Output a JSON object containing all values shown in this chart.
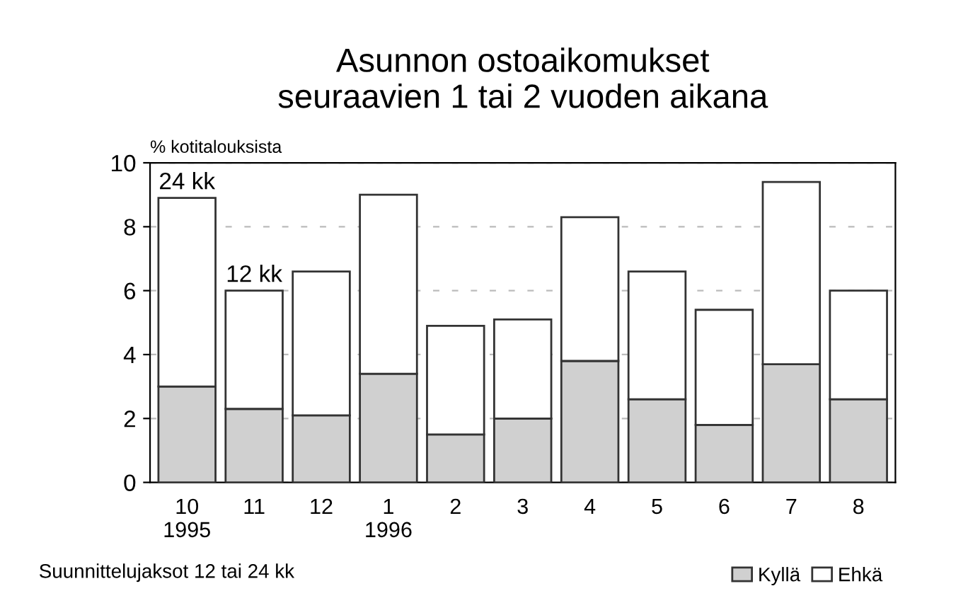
{
  "chart_data": {
    "type": "bar",
    "stacked": true,
    "title": "Asunnon ostoaikomukset\nseuraavien 1 tai 2 vuoden aikana",
    "ylabel": "% kotitalouksista",
    "categories": [
      "10\n1995",
      "11",
      "12",
      "1\n1996",
      "2",
      "3",
      "4",
      "5",
      "6",
      "7",
      "8"
    ],
    "series": [
      {
        "name": "Kyllä",
        "color": "#d0d0d0",
        "values": [
          3.0,
          2.3,
          2.1,
          3.4,
          1.5,
          2.0,
          3.8,
          2.6,
          1.8,
          3.7,
          2.6
        ]
      },
      {
        "name": "Ehkä",
        "color": "#ffffff",
        "values": [
          5.9,
          3.7,
          4.5,
          5.6,
          3.4,
          3.1,
          4.5,
          4.0,
          3.6,
          5.7,
          3.4
        ]
      }
    ],
    "ylim": [
      0,
      10
    ],
    "yticks": [
      0,
      2,
      4,
      6,
      8,
      10
    ],
    "grid": "y",
    "legend": "bottom right",
    "annotations": [
      {
        "text": "24 kk",
        "x": "10\n1995",
        "y": 8.9
      },
      {
        "text": "12 kk",
        "x": "11",
        "y": 6.0
      },
      "Suunnittelujaksot 12 tai 24 kk"
    ]
  }
}
